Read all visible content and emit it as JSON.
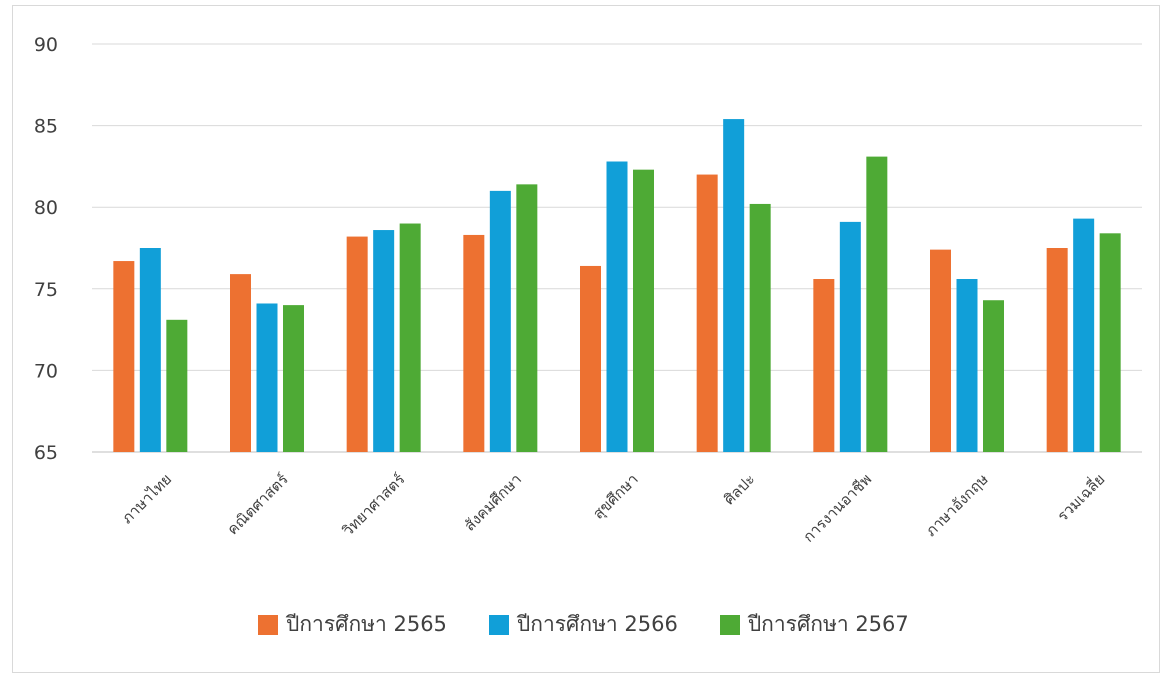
{
  "chart_data": {
    "type": "bar",
    "title": "",
    "xlabel": "",
    "ylabel": "",
    "ylim": [
      65,
      90
    ],
    "yticks": [
      65,
      70,
      75,
      80,
      85,
      90
    ],
    "grid": true,
    "legend_position": "bottom",
    "categories": [
      "ภาษาไทย",
      "คณิตศาสตร์",
      "วิทยาศาสตร์",
      "สังคมศึกษา",
      "สุขศึกษา",
      "ศิลปะ",
      "การงานอาชีพ",
      "ภาษาอังกฤษ",
      "รวมเฉลี่ย"
    ],
    "series": [
      {
        "name": "ปีการศึกษา 2565",
        "color": "#ED7131",
        "values": [
          76.7,
          75.9,
          78.2,
          78.3,
          76.4,
          82.0,
          75.6,
          77.4,
          77.5
        ]
      },
      {
        "name": "ปีการศึกษา 2566",
        "color": "#119FD8",
        "values": [
          77.5,
          74.1,
          78.6,
          81.0,
          82.8,
          85.4,
          79.1,
          75.6,
          79.3
        ]
      },
      {
        "name": "ปีการศึกษา 2567",
        "color": "#4EAA35",
        "values": [
          73.1,
          74.0,
          79.0,
          81.4,
          82.3,
          80.2,
          83.1,
          74.3,
          78.4
        ]
      }
    ]
  }
}
